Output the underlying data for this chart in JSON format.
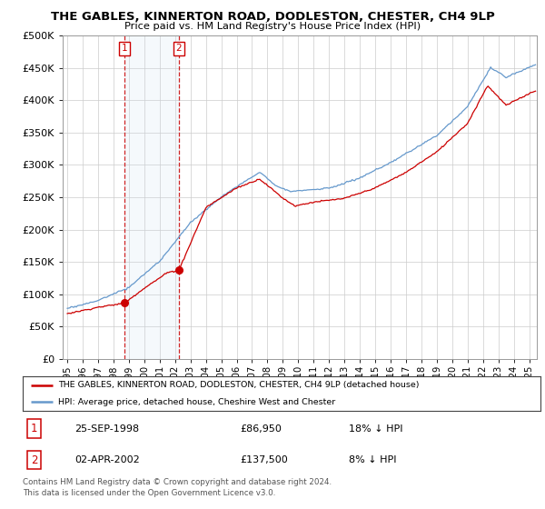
{
  "title": "THE GABLES, KINNERTON ROAD, DODLESTON, CHESTER, CH4 9LP",
  "subtitle": "Price paid vs. HM Land Registry's House Price Index (HPI)",
  "legend_label_red": "THE GABLES, KINNERTON ROAD, DODLESTON, CHESTER, CH4 9LP (detached house)",
  "legend_label_blue": "HPI: Average price, detached house, Cheshire West and Chester",
  "footnote": "Contains HM Land Registry data © Crown copyright and database right 2024.\nThis data is licensed under the Open Government Licence v3.0.",
  "sale1_label": "1",
  "sale2_label": "2",
  "sale1_date": "25-SEP-1998",
  "sale1_price": "£86,950",
  "sale1_hpi": "18% ↓ HPI",
  "sale2_date": "02-APR-2002",
  "sale2_price": "£137,500",
  "sale2_hpi": "8% ↓ HPI",
  "sale1_x": 1998.73,
  "sale2_x": 2002.25,
  "sale1_y": 86950,
  "sale2_y": 137500,
  "ylim": [
    0,
    500000
  ],
  "yticks": [
    0,
    50000,
    100000,
    150000,
    200000,
    250000,
    300000,
    350000,
    400000,
    450000,
    500000
  ],
  "xlim_left": 1994.7,
  "xlim_right": 2025.5,
  "color_red": "#cc0000",
  "color_blue": "#6699cc",
  "color_vline": "#cc0000",
  "color_shade": "#cce0f0",
  "bg_color": "#ffffff",
  "grid_color": "#cccccc",
  "hpi_seed": 10,
  "price_seed": 7
}
